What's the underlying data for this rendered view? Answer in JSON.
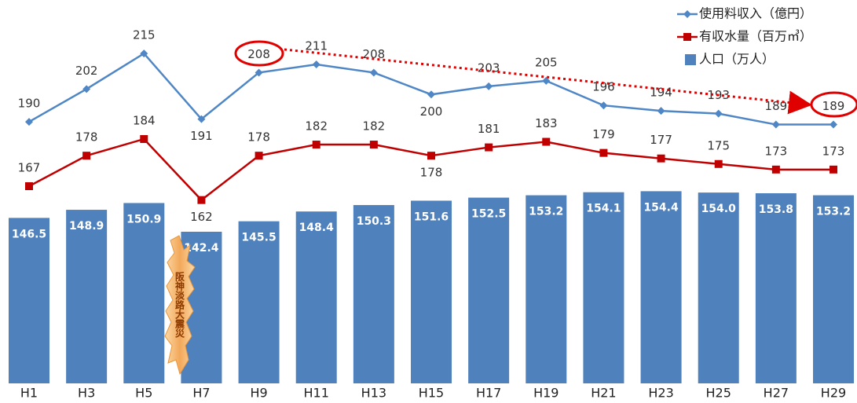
{
  "chart_data": {
    "type": "combo",
    "categories": [
      "H1",
      "H3",
      "H5",
      "H7",
      "H9",
      "H11",
      "H13",
      "H15",
      "H17",
      "H19",
      "H21",
      "H23",
      "H25",
      "H27",
      "H29"
    ],
    "ylim": [
      97.5,
      208.7
    ],
    "series": [
      {
        "name": "使用料収入（億円）",
        "type": "line",
        "marker": "diamond",
        "color": "#4f86c6",
        "ylim": [
          94.3,
          231.7
        ],
        "values": [
          190,
          202,
          215,
          191,
          208,
          211,
          208,
          200,
          203,
          205,
          196,
          194,
          193,
          189,
          189
        ]
      },
      {
        "name": "有収水量（百万㎥）",
        "type": "line",
        "marker": "square",
        "color": "#c00000",
        "ylim": [
          95.9,
          231.3
        ],
        "values": [
          167,
          178,
          184,
          162,
          178,
          182,
          182,
          178,
          181,
          183,
          179,
          177,
          175,
          173,
          173
        ]
      },
      {
        "name": "人口（万人）",
        "type": "bar",
        "color": "#4f81bd",
        "values": [
          146.5,
          148.9,
          150.9,
          142.4,
          145.5,
          148.4,
          150.3,
          151.6,
          152.5,
          153.2,
          154.1,
          154.4,
          154.0,
          153.8,
          153.2
        ],
        "value_labels": [
          "146.5",
          "148.9",
          "150.9",
          "142.4",
          "145.5",
          "148.4",
          "150.3",
          "151.6",
          "152.5",
          "153.2",
          "154.1",
          "154.4",
          "154.0",
          "153.8",
          "153.2"
        ]
      }
    ],
    "annotation": "阪神淡路大震災",
    "legend": "top-right"
  }
}
